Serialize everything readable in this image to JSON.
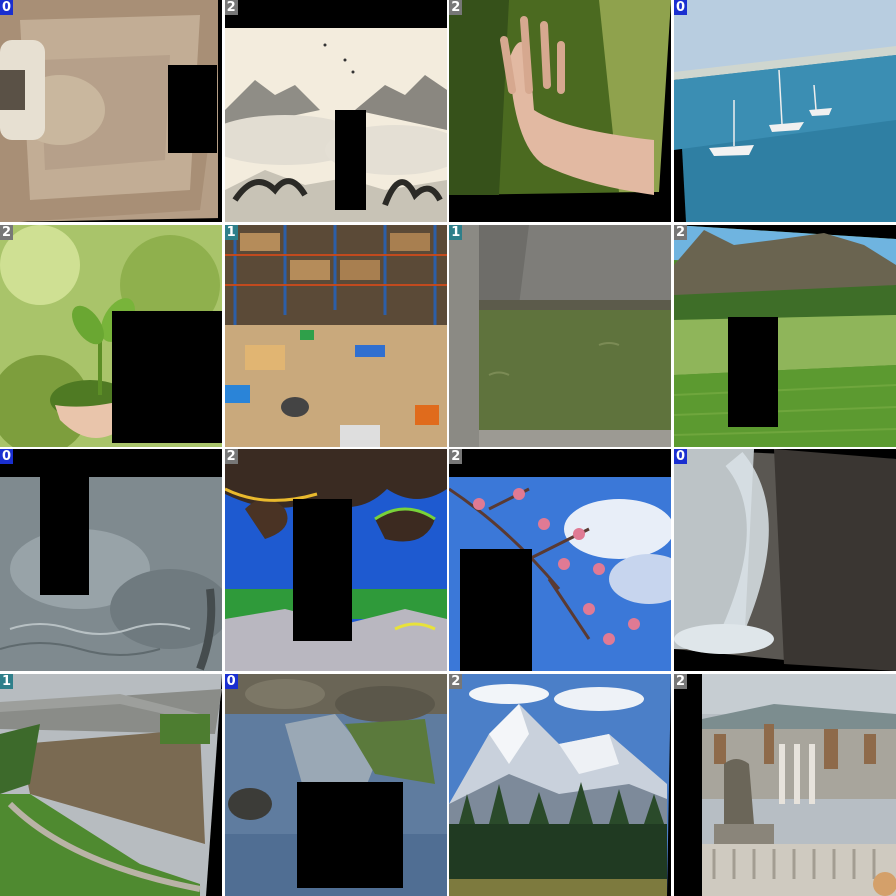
{
  "tiles": [
    {
      "label": "0",
      "scene": "sand-sink",
      "mask": true
    },
    {
      "label": "2",
      "scene": "ink-mountains",
      "mask": true
    },
    {
      "label": "2",
      "scene": "hand-on-moss",
      "mask": false
    },
    {
      "label": "0",
      "scene": "sailboats-sea",
      "mask": false
    },
    {
      "label": "2",
      "scene": "seedling-hands",
      "mask": true
    },
    {
      "label": "1",
      "scene": "messy-warehouse",
      "mask": false
    },
    {
      "label": "1",
      "scene": "green-pond",
      "mask": false
    },
    {
      "label": "2",
      "scene": "vineyard-hills",
      "mask": true
    },
    {
      "label": "0",
      "scene": "water-surface",
      "mask": true
    },
    {
      "label": "2",
      "scene": "false-color-sky",
      "mask": true
    },
    {
      "label": "2",
      "scene": "cherry-blossom",
      "mask": true
    },
    {
      "label": "0",
      "scene": "waterfall-closeup",
      "mask": false
    },
    {
      "label": "1",
      "scene": "flooded-river",
      "mask": false
    },
    {
      "label": "0",
      "scene": "pond-reflection",
      "mask": true
    },
    {
      "label": "2",
      "scene": "snow-mountain-forest",
      "mask": false
    },
    {
      "label": "2",
      "scene": "city-statue",
      "mask": false
    }
  ]
}
